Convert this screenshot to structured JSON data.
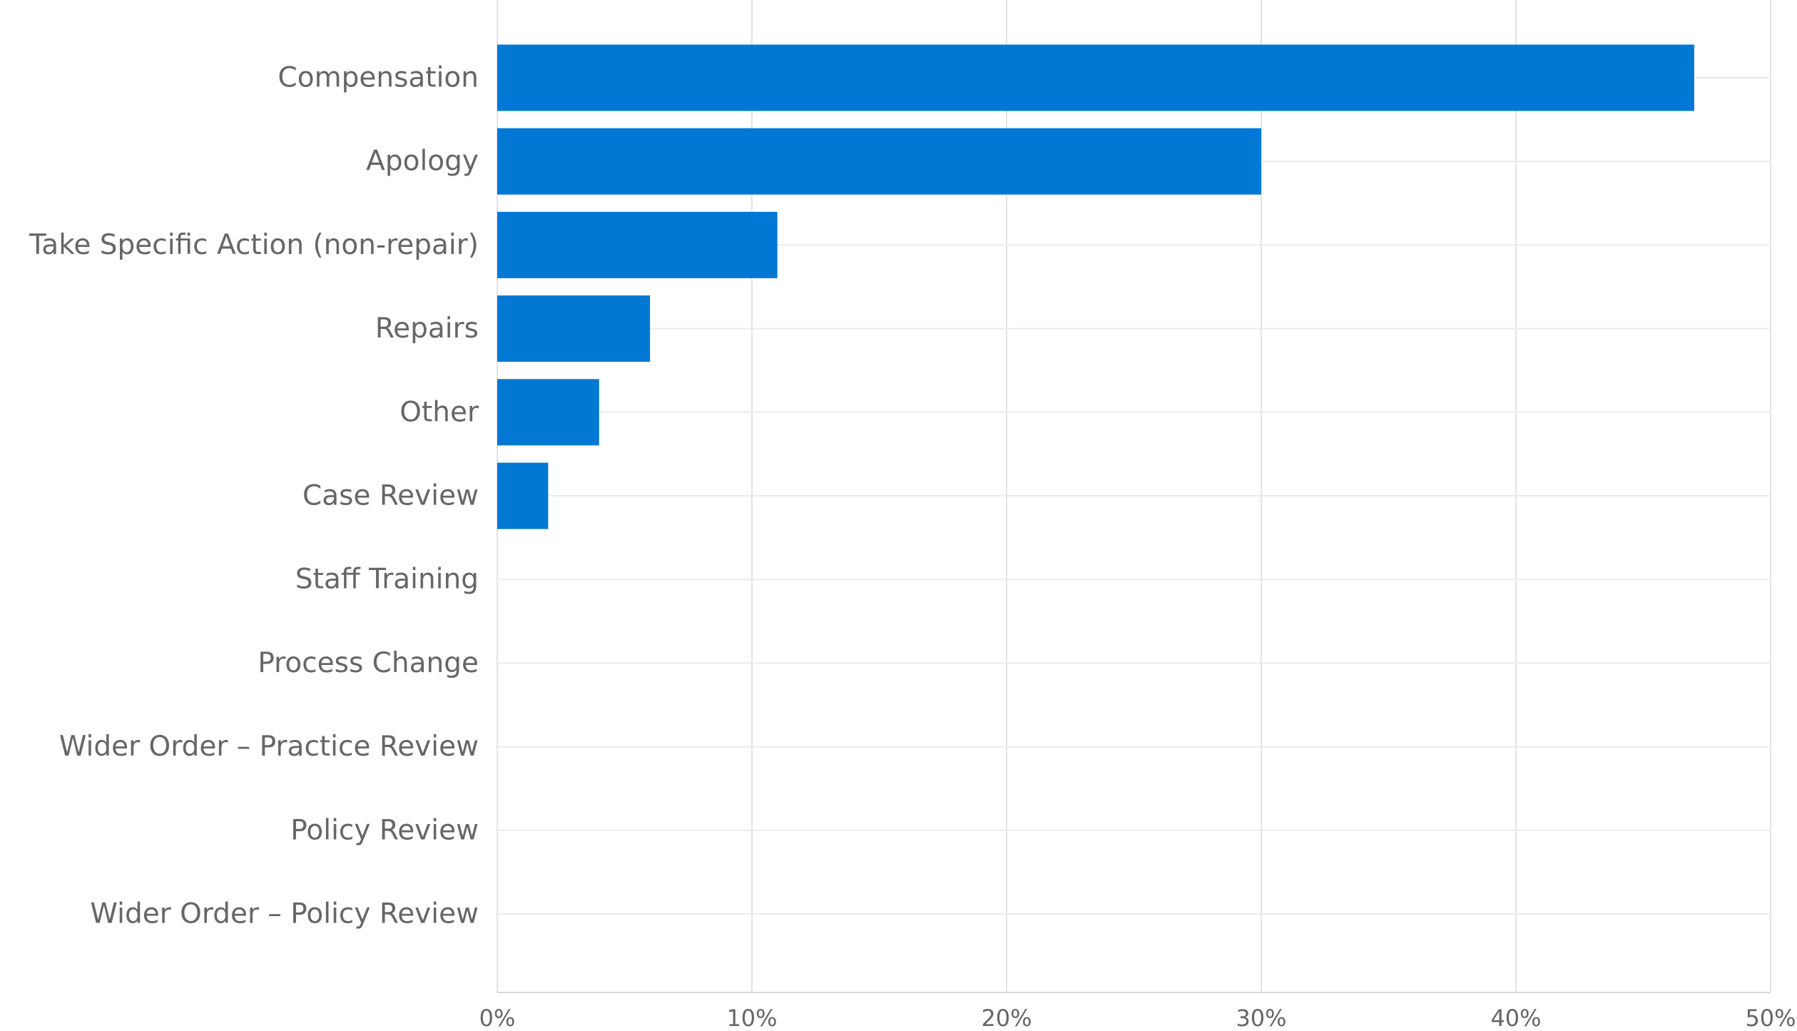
{
  "chart_data": {
    "type": "bar",
    "orientation": "horizontal",
    "categories": [
      "Compensation",
      "Apology",
      "Take Specific Action (non-repair)",
      "Repairs",
      "Other",
      "Case Review",
      "Staff Training",
      "Process Change",
      "Wider Order – Practice Review",
      "Policy Review",
      "Wider Order – Policy Review"
    ],
    "values": [
      47,
      30,
      11,
      6,
      4,
      2,
      0,
      0,
      0,
      0,
      0
    ],
    "unit": "%",
    "xlim": [
      0,
      50
    ],
    "x_ticks": [
      0,
      10,
      20,
      30,
      40,
      50
    ],
    "x_tick_labels": [
      "0%",
      "10%",
      "20%",
      "30%",
      "40%",
      "50%"
    ],
    "title": "",
    "xlabel": "",
    "ylabel": "",
    "grid": true,
    "colors": {
      "bar": "#0078d4",
      "label_text": "#666666",
      "grid": "#ebebeb"
    }
  }
}
